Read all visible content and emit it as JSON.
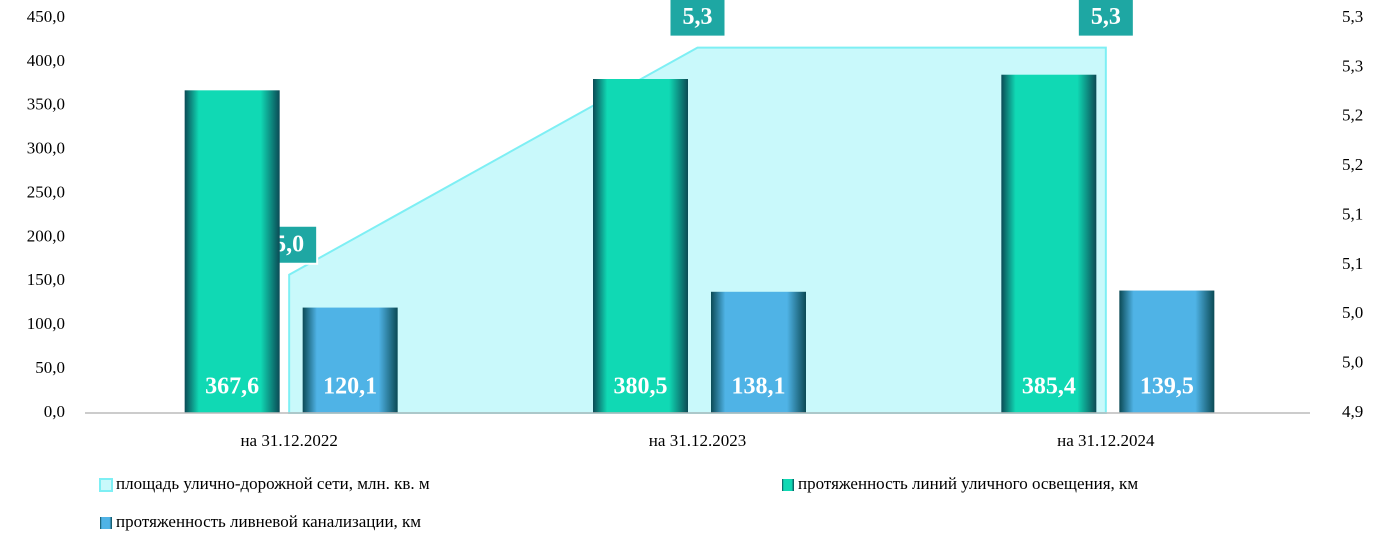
{
  "chart_data": {
    "type": "bar",
    "categories": [
      "на 31.12.2022",
      "на 31.12.2023",
      "на 31.12.2024"
    ],
    "series": [
      {
        "name": "площадь улично-дорожной сети, млн. кв. м",
        "type": "area",
        "axis": "y2",
        "color": "#c9f9fb",
        "values": [
          5.04,
          5.27,
          5.27
        ],
        "value_labels": [
          "5,0",
          "5,3",
          "5,3"
        ]
      },
      {
        "name": "протяженность линий уличного освещения, км",
        "type": "bar",
        "color": "#10d9b4",
        "values": [
          367.6,
          380.5,
          385.4
        ],
        "value_labels": [
          "367,6",
          "380,5",
          "385,4"
        ]
      },
      {
        "name": "протяженность ливневой канализации, км",
        "type": "bar",
        "color": "#4fb3e6",
        "values": [
          120.1,
          138.1,
          139.5
        ],
        "value_labels": [
          "120,1",
          "138,1",
          "139,5"
        ]
      }
    ],
    "ylim": [
      0,
      450
    ],
    "yticks": [
      {
        "value": 0,
        "label": "0,0"
      },
      {
        "value": 50,
        "label": "50,0"
      },
      {
        "value": 100,
        "label": "100,0"
      },
      {
        "value": 150,
        "label": "150,0"
      },
      {
        "value": 200,
        "label": "200,0"
      },
      {
        "value": 250,
        "label": "250,0"
      },
      {
        "value": 300,
        "label": "300,0"
      },
      {
        "value": 350,
        "label": "350,0"
      },
      {
        "value": 400,
        "label": "400,0"
      },
      {
        "value": 450,
        "label": "450,0"
      }
    ],
    "y2lim": [
      4.9,
      5.3
    ],
    "y2ticks": [
      {
        "value": 4.9,
        "label": "4,9"
      },
      {
        "value": 4.95,
        "label": "5,0"
      },
      {
        "value": 5.0,
        "label": "5,0"
      },
      {
        "value": 5.05,
        "label": "5,1"
      },
      {
        "value": 5.1,
        "label": "5,1"
      },
      {
        "value": 5.15,
        "label": "5,2"
      },
      {
        "value": 5.2,
        "label": "5,2"
      },
      {
        "value": 5.25,
        "label": "5,3"
      },
      {
        "value": 5.3,
        "label": "5,3"
      }
    ],
    "grid": false
  }
}
